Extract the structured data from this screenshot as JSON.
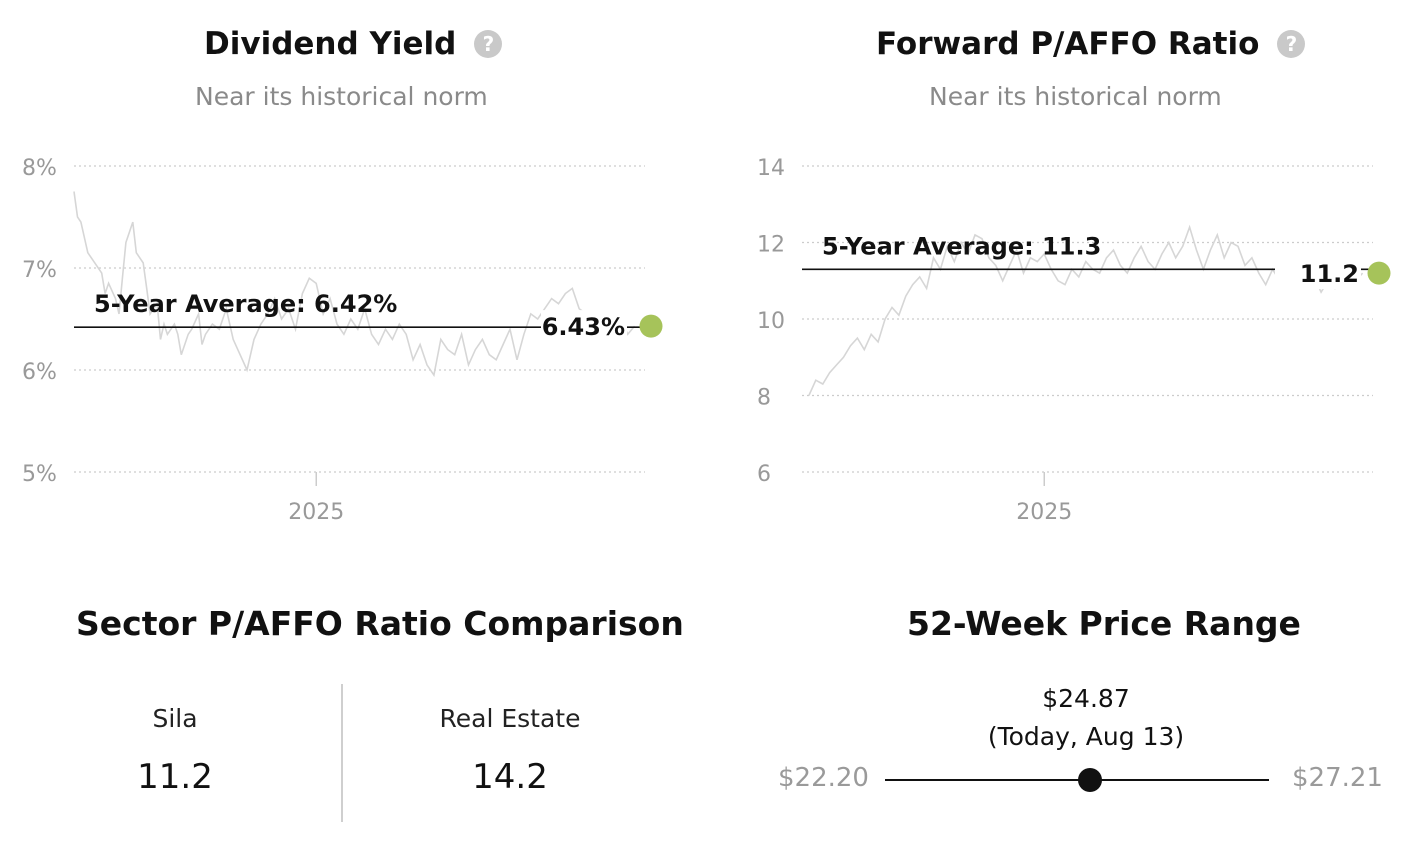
{
  "dividend_yield": {
    "title": "Dividend Yield",
    "help_icon": "question-icon",
    "subtitle": "Near its historical norm"
  },
  "forward_paffo": {
    "title": "Forward P/AFFO Ratio",
    "help_icon": "question-icon",
    "subtitle": "Near its historical norm"
  },
  "sector_comparison": {
    "title": "Sector P/AFFO Ratio Comparison",
    "items": [
      {
        "label": "Sila",
        "value": "11.2"
      },
      {
        "label": "Real Estate",
        "value": "14.2"
      }
    ]
  },
  "price_range": {
    "title": "52-Week Price Range",
    "current_price": "$24.87",
    "current_note": "(Today, Aug 13)",
    "low": "$22.20",
    "high": "$27.21",
    "low_value": 22.2,
    "high_value": 27.21,
    "current_value": 24.87
  },
  "colors": {
    "line": "#d6d6d6",
    "average": "#111111",
    "current_dot": "#a6c35a",
    "grid": "#cccccc",
    "axis_text": "#999999"
  },
  "chart_data": [
    {
      "type": "line",
      "title": "Dividend Yield",
      "y_tick_labels": [
        "8%",
        "7%",
        "6%",
        "5%"
      ],
      "y_ticks": [
        8,
        7,
        6,
        5
      ],
      "ylim": [
        5,
        8
      ],
      "x_tick_labels": [
        "2025"
      ],
      "x_ticks": [
        2025.0
      ],
      "xlim": [
        2024.3,
        2025.95
      ],
      "grid": true,
      "average": {
        "label": "5-Year Average: 6.42%",
        "value": 6.42
      },
      "current": {
        "label": "6.43%",
        "value": 6.43
      },
      "series": [
        {
          "x": [
            2024.3,
            2024.31,
            2024.32,
            2024.34,
            2024.35,
            2024.36,
            2024.38,
            2024.39,
            2024.4,
            2024.42,
            2024.43,
            2024.44,
            2024.45,
            2024.47,
            2024.48,
            2024.5,
            2024.51,
            2024.52,
            2024.54,
            2024.55,
            2024.56,
            2024.57,
            2024.59,
            2024.6,
            2024.61,
            2024.63,
            2024.64,
            2024.66,
            2024.67,
            2024.68,
            2024.7,
            2024.72,
            2024.74,
            2024.76,
            2024.78,
            2024.8,
            2024.82,
            2024.84,
            2024.86,
            2024.88,
            2024.9,
            2024.92,
            2024.94,
            2024.96,
            2024.98,
            2025.0,
            2025.02,
            2025.04,
            2025.06,
            2025.08,
            2025.1,
            2025.12,
            2025.14,
            2025.16,
            2025.18,
            2025.2,
            2025.22,
            2025.24,
            2025.26,
            2025.28,
            2025.3,
            2025.32,
            2025.34,
            2025.36,
            2025.38,
            2025.4,
            2025.42,
            2025.44,
            2025.46,
            2025.48,
            2025.5,
            2025.52,
            2025.54,
            2025.56,
            2025.58,
            2025.6,
            2025.62,
            2025.64,
            2025.66,
            2025.68,
            2025.7,
            2025.72,
            2025.74,
            2025.76,
            2025.78,
            2025.8,
            2025.82,
            2025.84,
            2025.86,
            2025.88,
            2025.9,
            2025.92
          ],
          "values": [
            7.75,
            7.5,
            7.45,
            7.15,
            7.1,
            7.05,
            6.95,
            6.75,
            6.85,
            6.7,
            6.55,
            6.9,
            7.25,
            7.45,
            7.15,
            7.05,
            6.8,
            6.55,
            6.65,
            6.3,
            6.45,
            6.35,
            6.45,
            6.35,
            6.15,
            6.35,
            6.4,
            6.55,
            6.25,
            6.35,
            6.45,
            6.4,
            6.6,
            6.3,
            6.15,
            6.0,
            6.3,
            6.45,
            6.55,
            6.7,
            6.5,
            6.6,
            6.4,
            6.75,
            6.9,
            6.85,
            6.55,
            6.7,
            6.45,
            6.35,
            6.5,
            6.4,
            6.6,
            6.35,
            6.25,
            6.4,
            6.3,
            6.45,
            6.35,
            6.1,
            6.25,
            6.05,
            5.95,
            6.3,
            6.2,
            6.15,
            6.35,
            6.05,
            6.2,
            6.3,
            6.15,
            6.1,
            6.25,
            6.4,
            6.1,
            6.35,
            6.55,
            6.5,
            6.6,
            6.7,
            6.65,
            6.75,
            6.8,
            6.6,
            6.55,
            6.4,
            6.5,
            6.3,
            6.45,
            6.5,
            6.35,
            6.43
          ]
        }
      ]
    },
    {
      "type": "line",
      "title": "Forward P/AFFO Ratio",
      "y_tick_labels": [
        "14",
        "12",
        "10",
        "8",
        "6"
      ],
      "y_ticks": [
        14,
        12,
        10,
        8,
        6
      ],
      "ylim": [
        6,
        14
      ],
      "x_tick_labels": [
        "2025"
      ],
      "x_ticks": [
        2025.0
      ],
      "xlim": [
        2024.3,
        2025.95
      ],
      "grid": true,
      "average": {
        "label": "5-Year Average: 11.3",
        "value": 11.3
      },
      "current": {
        "label": "11.2",
        "value": 11.2
      },
      "series": [
        {
          "x": [
            2024.32,
            2024.34,
            2024.36,
            2024.38,
            2024.4,
            2024.42,
            2024.44,
            2024.46,
            2024.48,
            2024.5,
            2024.52,
            2024.54,
            2024.56,
            2024.58,
            2024.6,
            2024.62,
            2024.64,
            2024.66,
            2024.68,
            2024.7,
            2024.72,
            2024.74,
            2024.76,
            2024.78,
            2024.8,
            2024.82,
            2024.84,
            2024.86,
            2024.88,
            2024.9,
            2024.92,
            2024.94,
            2024.96,
            2024.98,
            2025.0,
            2025.02,
            2025.04,
            2025.06,
            2025.08,
            2025.1,
            2025.12,
            2025.14,
            2025.16,
            2025.18,
            2025.2,
            2025.22,
            2025.24,
            2025.26,
            2025.28,
            2025.3,
            2025.32,
            2025.34,
            2025.36,
            2025.38,
            2025.4,
            2025.42,
            2025.44,
            2025.46,
            2025.48,
            2025.5,
            2025.52,
            2025.54,
            2025.56,
            2025.58,
            2025.6,
            2025.62,
            2025.64,
            2025.66,
            2025.68,
            2025.7,
            2025.72,
            2025.74,
            2025.76,
            2025.78,
            2025.8,
            2025.82,
            2025.84,
            2025.86,
            2025.88,
            2025.9,
            2025.92
          ],
          "values": [
            8.0,
            8.4,
            8.3,
            8.6,
            8.8,
            9.0,
            9.3,
            9.5,
            9.2,
            9.6,
            9.4,
            10.0,
            10.3,
            10.1,
            10.6,
            10.9,
            11.1,
            10.8,
            11.6,
            11.3,
            11.9,
            11.5,
            12.0,
            11.7,
            12.2,
            12.1,
            11.6,
            11.4,
            11.0,
            11.4,
            11.8,
            11.2,
            11.6,
            11.5,
            11.7,
            11.3,
            11.0,
            10.9,
            11.3,
            11.1,
            11.5,
            11.3,
            11.2,
            11.6,
            11.8,
            11.4,
            11.2,
            11.6,
            11.9,
            11.5,
            11.3,
            11.7,
            12.0,
            11.6,
            11.9,
            12.4,
            11.8,
            11.3,
            11.8,
            12.2,
            11.6,
            12.0,
            11.9,
            11.4,
            11.6,
            11.2,
            10.9,
            11.3,
            11.0,
            11.2,
            11.4,
            11.0,
            10.9,
            11.1,
            10.7,
            11.0,
            10.8,
            11.1,
            11.3,
            11.0,
            11.2
          ]
        }
      ]
    }
  ]
}
